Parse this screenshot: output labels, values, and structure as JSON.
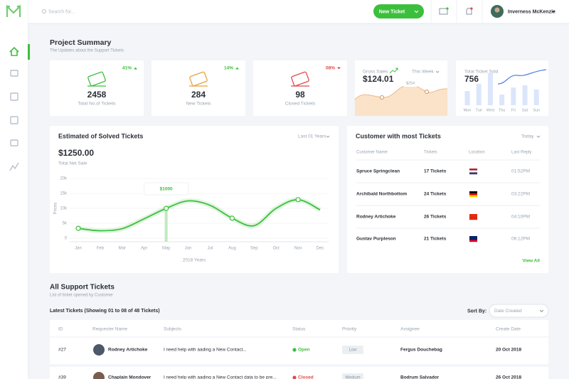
{
  "header": {
    "search_placeholder": "Search for...",
    "new_ticket": "New Ticket",
    "user": "Inverness McKenzie"
  },
  "summary": {
    "title": "Project Summary",
    "subtitle": "The Updates about the Support Tickets",
    "cards": [
      {
        "change": "41%",
        "value": 2458,
        "label": "Total No.of Tickets"
      },
      {
        "change": "14%",
        "value": 284,
        "label": "New Tickets"
      },
      {
        "change": "08%",
        "value": 98,
        "label": "Closed Tickets"
      }
    ],
    "gross_sales": {
      "label": "Gross Sales",
      "value": "$124.01",
      "period": "This Week",
      "tooltip": "$254"
    },
    "tickets_sold": {
      "label": "Total Ticket Sold",
      "value": 756,
      "days": [
        "Mon",
        "Tue",
        "Wed",
        "Thu",
        "Fri",
        "Sat",
        "Sun"
      ],
      "values": [
        20,
        30,
        45,
        15,
        25,
        28,
        22
      ]
    }
  },
  "solved_chart": {
    "type": "line",
    "title": "Estimated of Solved Tickets",
    "period": "Last 01 Years",
    "total": "$1250.00",
    "total_label": "Total Net Sale",
    "y_label": "Prices",
    "x_label": "2018 Years",
    "tooltip": "$1000",
    "categories": [
      "Jan",
      "Feb",
      "Mar",
      "Apr",
      "May",
      "Jun",
      "Jul",
      "Aug",
      "Sep",
      "Oct",
      "Nov",
      "Dec"
    ],
    "values": [
      3300,
      2500,
      3200,
      6500,
      10000,
      12500,
      11000,
      6700,
      4200,
      10000,
      12900,
      9500
    ],
    "ylim": [
      0,
      20000
    ],
    "yticks": [
      0,
      {
        "value": 5000,
        "label": "5k"
      },
      {
        "value": 10000,
        "label": "10k"
      },
      {
        "value": 15000,
        "label": "15k"
      },
      {
        "value": 20000,
        "label": "20k"
      }
    ],
    "color": "#3cbf3c"
  },
  "customers": {
    "title": "Customer with most Tickets",
    "period": "Today",
    "columns": [
      "Customer Name",
      "Tickets",
      "Location",
      "Last Reply"
    ],
    "rows": [
      [
        "Spruce Springclean",
        "17 Tickets",
        "01:52PM"
      ],
      [
        "Archibald Northbottom",
        "24 Tickets",
        "03:22PM"
      ],
      [
        "Rodney Artichoke",
        "26 Tickets",
        "04:10PM"
      ],
      [
        "Gustav Purpleson",
        "21 Tickets",
        "06:12PM"
      ]
    ],
    "view_all": "View All"
  },
  "tickets": {
    "title": "All Support Tickets",
    "subtitle": "List of ticket opened by Customer",
    "showing": "Latest Tickets (Showing 01 to 08 of 48 Tickets)",
    "sort_label": "Sort By:",
    "sort_value": "Date Created",
    "columns": [
      "ID",
      "Requester Name",
      "Subjects",
      "Status",
      "Priority",
      "Assignee",
      "Create Date"
    ],
    "rows": [
      [
        "#27",
        "Rodney Artichoke",
        "I need help with aading a New Contact...",
        "Open",
        "Low",
        "Fergus Douchebag",
        "20 Oct 2018"
      ],
      [
        "#39",
        "Chaplain Mondover",
        "I need help with aading a New Contact data to be pre...",
        "Closed",
        "Medium",
        "Bodrum Salvador",
        "26 Oct 2018"
      ]
    ]
  }
}
